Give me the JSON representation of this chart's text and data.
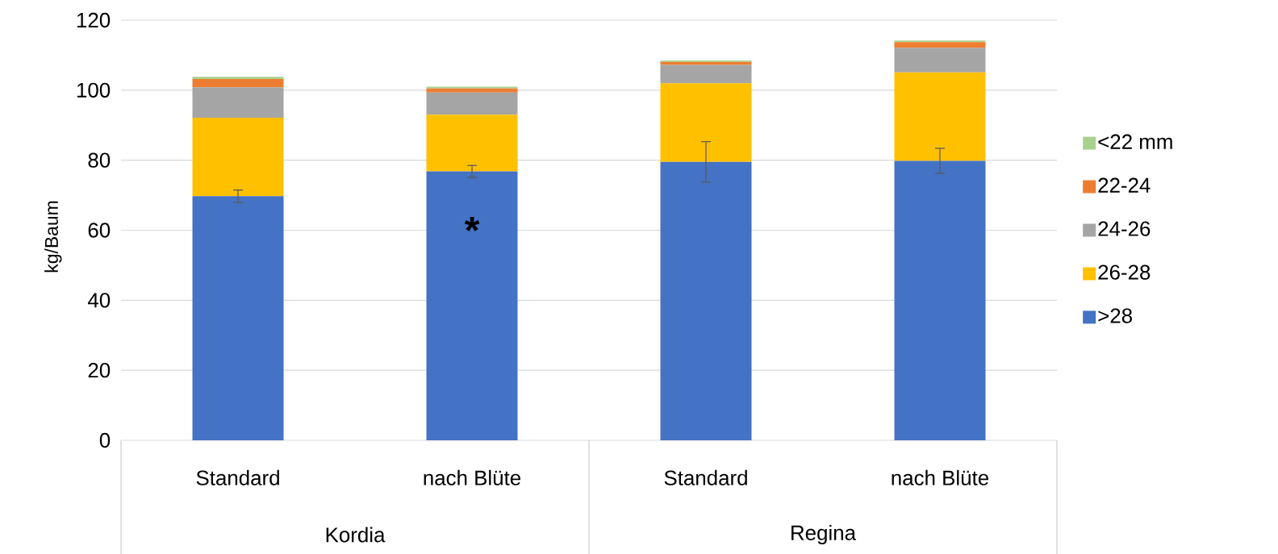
{
  "chart_data": {
    "type": "bar",
    "stacked": true,
    "ylabel": "kg/Baum",
    "categories": [
      "Standard",
      "nach Blüte",
      "Standard",
      "nach Blüte"
    ],
    "series": [
      {
        "name": ">28",
        "color": "#4472c4",
        "values": [
          69.7,
          76.8,
          79.5,
          79.8
        ],
        "errors": [
          1.8,
          1.7,
          5.8,
          3.6
        ]
      },
      {
        "name": "26-28",
        "color": "#ffc000",
        "values": [
          22.4,
          16.2,
          22.5,
          25.3
        ]
      },
      {
        "name": "24-26",
        "color": "#a5a5a5",
        "values": [
          8.7,
          6.3,
          5.2,
          7.0
        ]
      },
      {
        "name": "22-24",
        "color": "#ed7d31",
        "values": [
          2.4,
          1.2,
          0.9,
          1.6
        ]
      },
      {
        "name": "<22 mm",
        "color": "#a9d18e",
        "values": [
          0.6,
          0.5,
          0.4,
          0.5
        ]
      }
    ],
    "ylim": [
      0,
      120
    ],
    "yticks": [
      0,
      20,
      40,
      60,
      80,
      100,
      120
    ],
    "grid": "y",
    "legend": "right",
    "annotations": [
      "Kordia",
      "Regina",
      "*"
    ]
  }
}
